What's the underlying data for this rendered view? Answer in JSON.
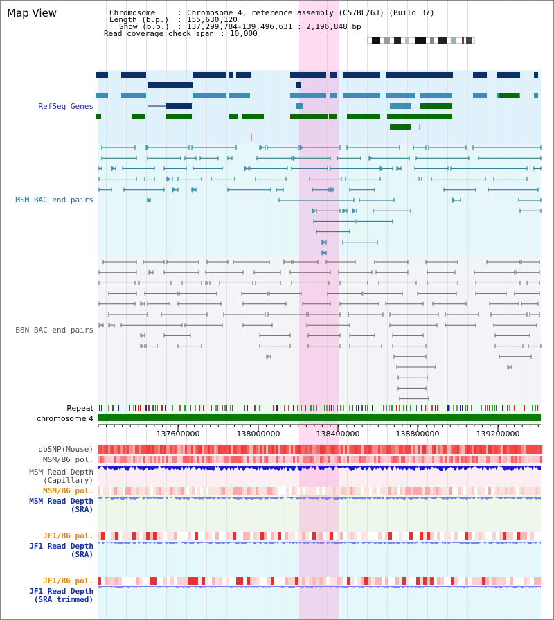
{
  "header": {
    "title": "Map View",
    "chromosome_label": "Chromosome",
    "chromosome_value": "Chromosome 4, reference assembly (C57BL/6J) (Build 37)",
    "length_label": "Length (b.p.)",
    "length_value": "155,630,120",
    "show_label": "Show (b.p.)",
    "show_value": "137,299,784-139,496,631 : 2,196,848 bp",
    "coverage_label": "Read coverage check span",
    "coverage_value": "10,000"
  },
  "tracks": {
    "refseq": "RefSeq Genes",
    "msm_bac": "MSM BAC end pairs",
    "b6n_bac": "B6N BAC end pairs",
    "repeat": "Repeat",
    "chromosome": "chromosome 4",
    "dbsnp": "dbSNP(Mouse)",
    "msm_b6_pol_1": "MSM/B6 pol.",
    "msm_depth_cap_1": "MSM Read Depth",
    "msm_depth_cap_2": "(Capillary)",
    "msm_b6_pol_2": "MSM/B6 pol.",
    "msm_depth_sra_1": "MSM Read Depth",
    "msm_depth_sra_2": "(SRA)",
    "jf1_b6_pol_1": "JF1/B6 pol.",
    "jf1_depth_sra_1": "JF1 Read Depth",
    "jf1_depth_sra_2": "(SRA)",
    "jf1_b6_pol_2": "JF1/B6 pol.",
    "jf1_depth_trim_1": "JF1 Read Depth",
    "jf1_depth_trim_2": "(SRA trimmed)"
  },
  "axis": {
    "ticks": [
      "137600000",
      "138000000",
      "138400000",
      "138800000",
      "139200000"
    ]
  },
  "colors": {
    "refseq_bg": "#dff1fa",
    "msm_bg": "#e6f7fa",
    "b6n_bg": "#f3f4f8",
    "highlight": "#ffc6ea",
    "chromosome_bar": "#0b7a0b",
    "gene_dark": "#0c2f66",
    "gene_mid": "#3b8fb5",
    "gene_green": "#086b08",
    "msm_line": "#1a6f8a",
    "b6n_line": "#666666",
    "snp_red": "#f04848",
    "depth_dark_blue": "#1a1ad8",
    "depth_light_blue": "#7f7ff0"
  }
}
